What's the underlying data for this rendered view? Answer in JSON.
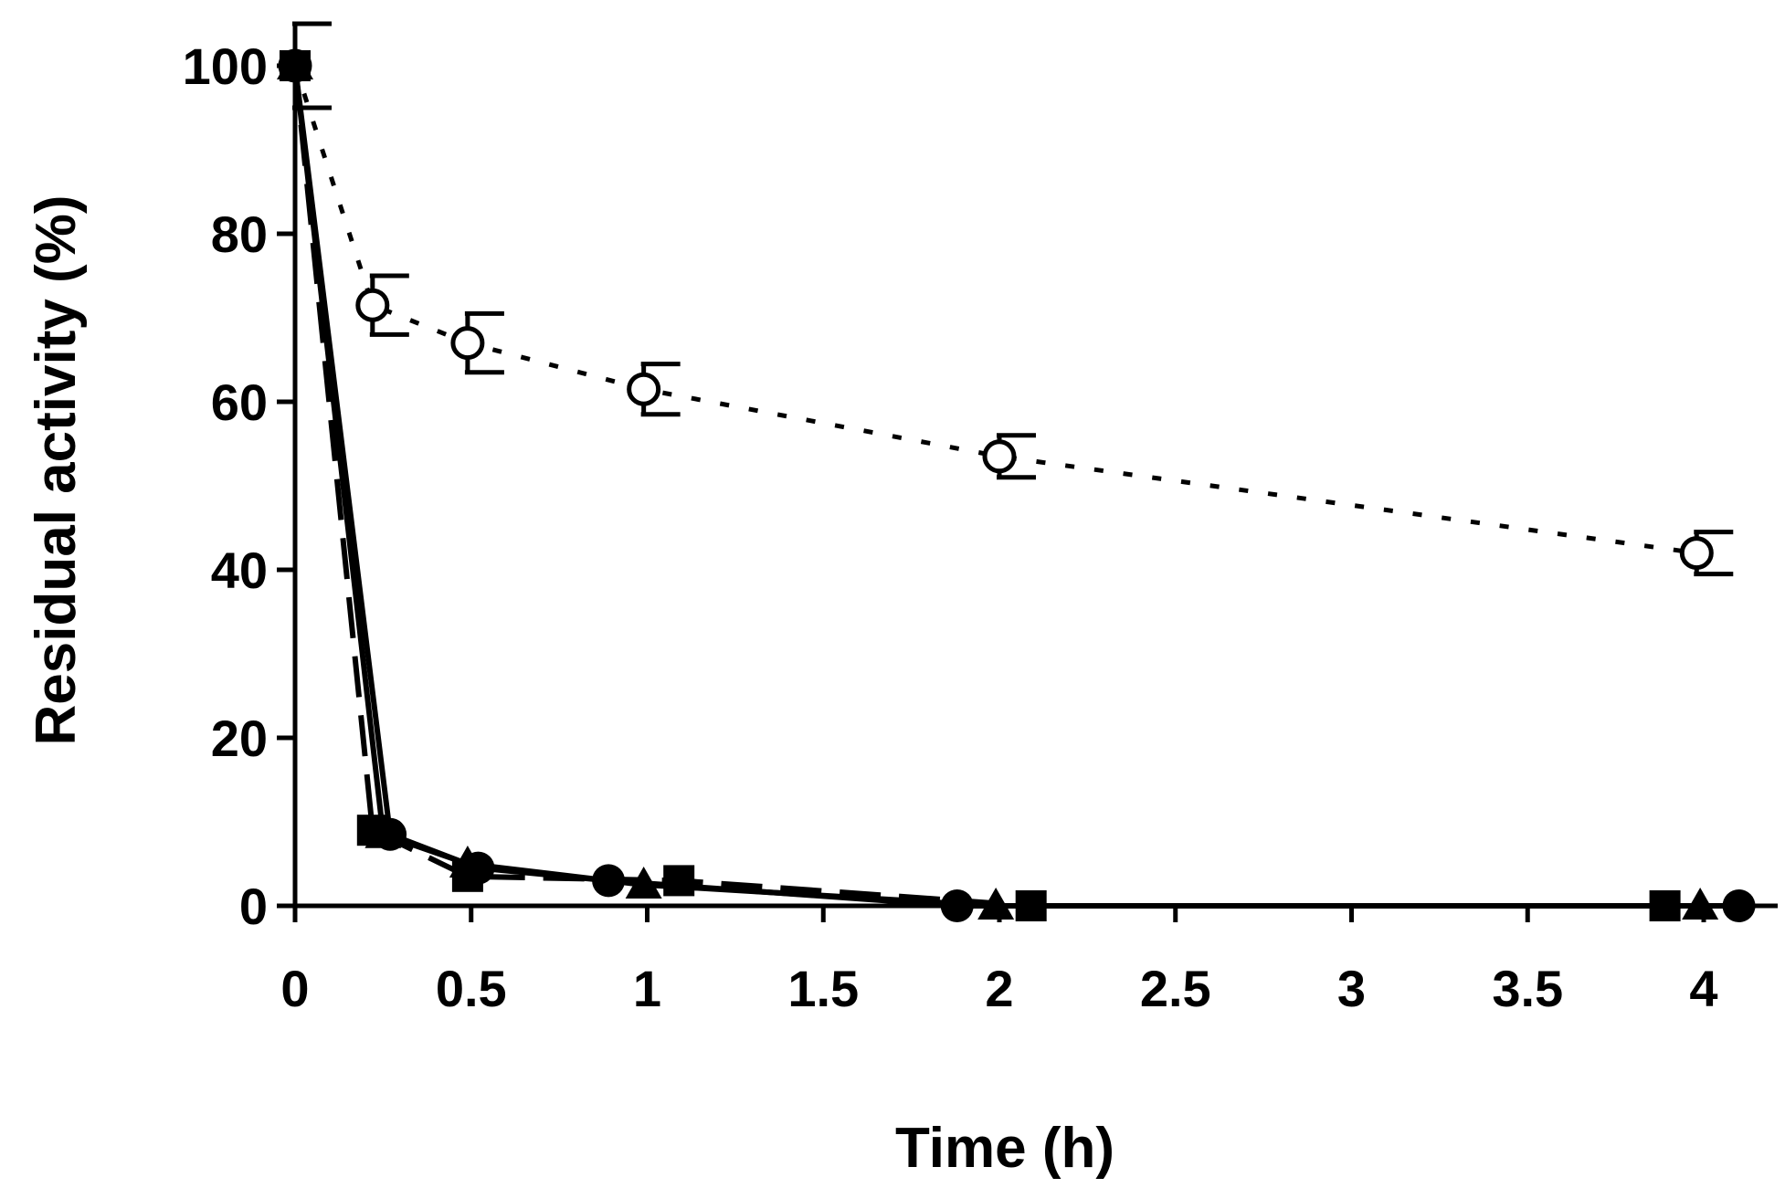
{
  "chart_data": {
    "type": "line",
    "title": "",
    "xlabel": "Time (h)",
    "ylabel": "Residual activity (%)",
    "xlim": [
      0,
      4.2
    ],
    "ylim": [
      0,
      100
    ],
    "x_ticks": [
      0,
      0.5,
      1,
      1.5,
      2,
      2.5,
      3,
      3.5,
      4
    ],
    "x_tick_labels": [
      "0",
      "0.5",
      "1",
      "1.5",
      "2",
      "2.5",
      "3",
      "3.5",
      "4"
    ],
    "y_ticks": [
      0,
      20,
      40,
      60,
      80,
      100
    ],
    "y_tick_labels": [
      "0",
      "20",
      "40",
      "60",
      "80",
      "100"
    ],
    "grid": false,
    "legend": "none",
    "series": [
      {
        "marker": "open-circle",
        "line": "dotted",
        "color": "#000000",
        "points": [
          {
            "x": 0,
            "y": 100,
            "err": 5
          },
          {
            "x": 0.22,
            "y": 71.5,
            "err": 3.5
          },
          {
            "x": 0.49,
            "y": 67,
            "err": 3.5
          },
          {
            "x": 0.99,
            "y": 61.5,
            "err": 3
          },
          {
            "x": 2.0,
            "y": 53.5,
            "err": 2.5
          },
          {
            "x": 3.98,
            "y": 42,
            "err": 2.5
          }
        ]
      },
      {
        "marker": "filled-circle",
        "line": "solid",
        "color": "#000000",
        "points": [
          {
            "x": 0,
            "y": 100
          },
          {
            "x": 0.27,
            "y": 8.5
          },
          {
            "x": 0.52,
            "y": 4.5
          },
          {
            "x": 0.89,
            "y": 3
          },
          {
            "x": 1.88,
            "y": 0
          },
          {
            "x": 4.1,
            "y": 0
          }
        ]
      },
      {
        "marker": "filled-triangle",
        "line": "solid",
        "color": "#000000",
        "points": [
          {
            "x": 0,
            "y": 100
          },
          {
            "x": 0.25,
            "y": 8.5
          },
          {
            "x": 0.49,
            "y": 5
          },
          {
            "x": 0.99,
            "y": 2.5
          },
          {
            "x": 1.99,
            "y": 0
          },
          {
            "x": 3.99,
            "y": 0
          }
        ]
      },
      {
        "marker": "filled-square",
        "line": "dashed",
        "color": "#000000",
        "points": [
          {
            "x": 0,
            "y": 100
          },
          {
            "x": 0.22,
            "y": 9
          },
          {
            "x": 0.49,
            "y": 3.5
          },
          {
            "x": 1.09,
            "y": 3
          },
          {
            "x": 2.09,
            "y": 0
          },
          {
            "x": 3.89,
            "y": 0
          }
        ]
      }
    ]
  }
}
